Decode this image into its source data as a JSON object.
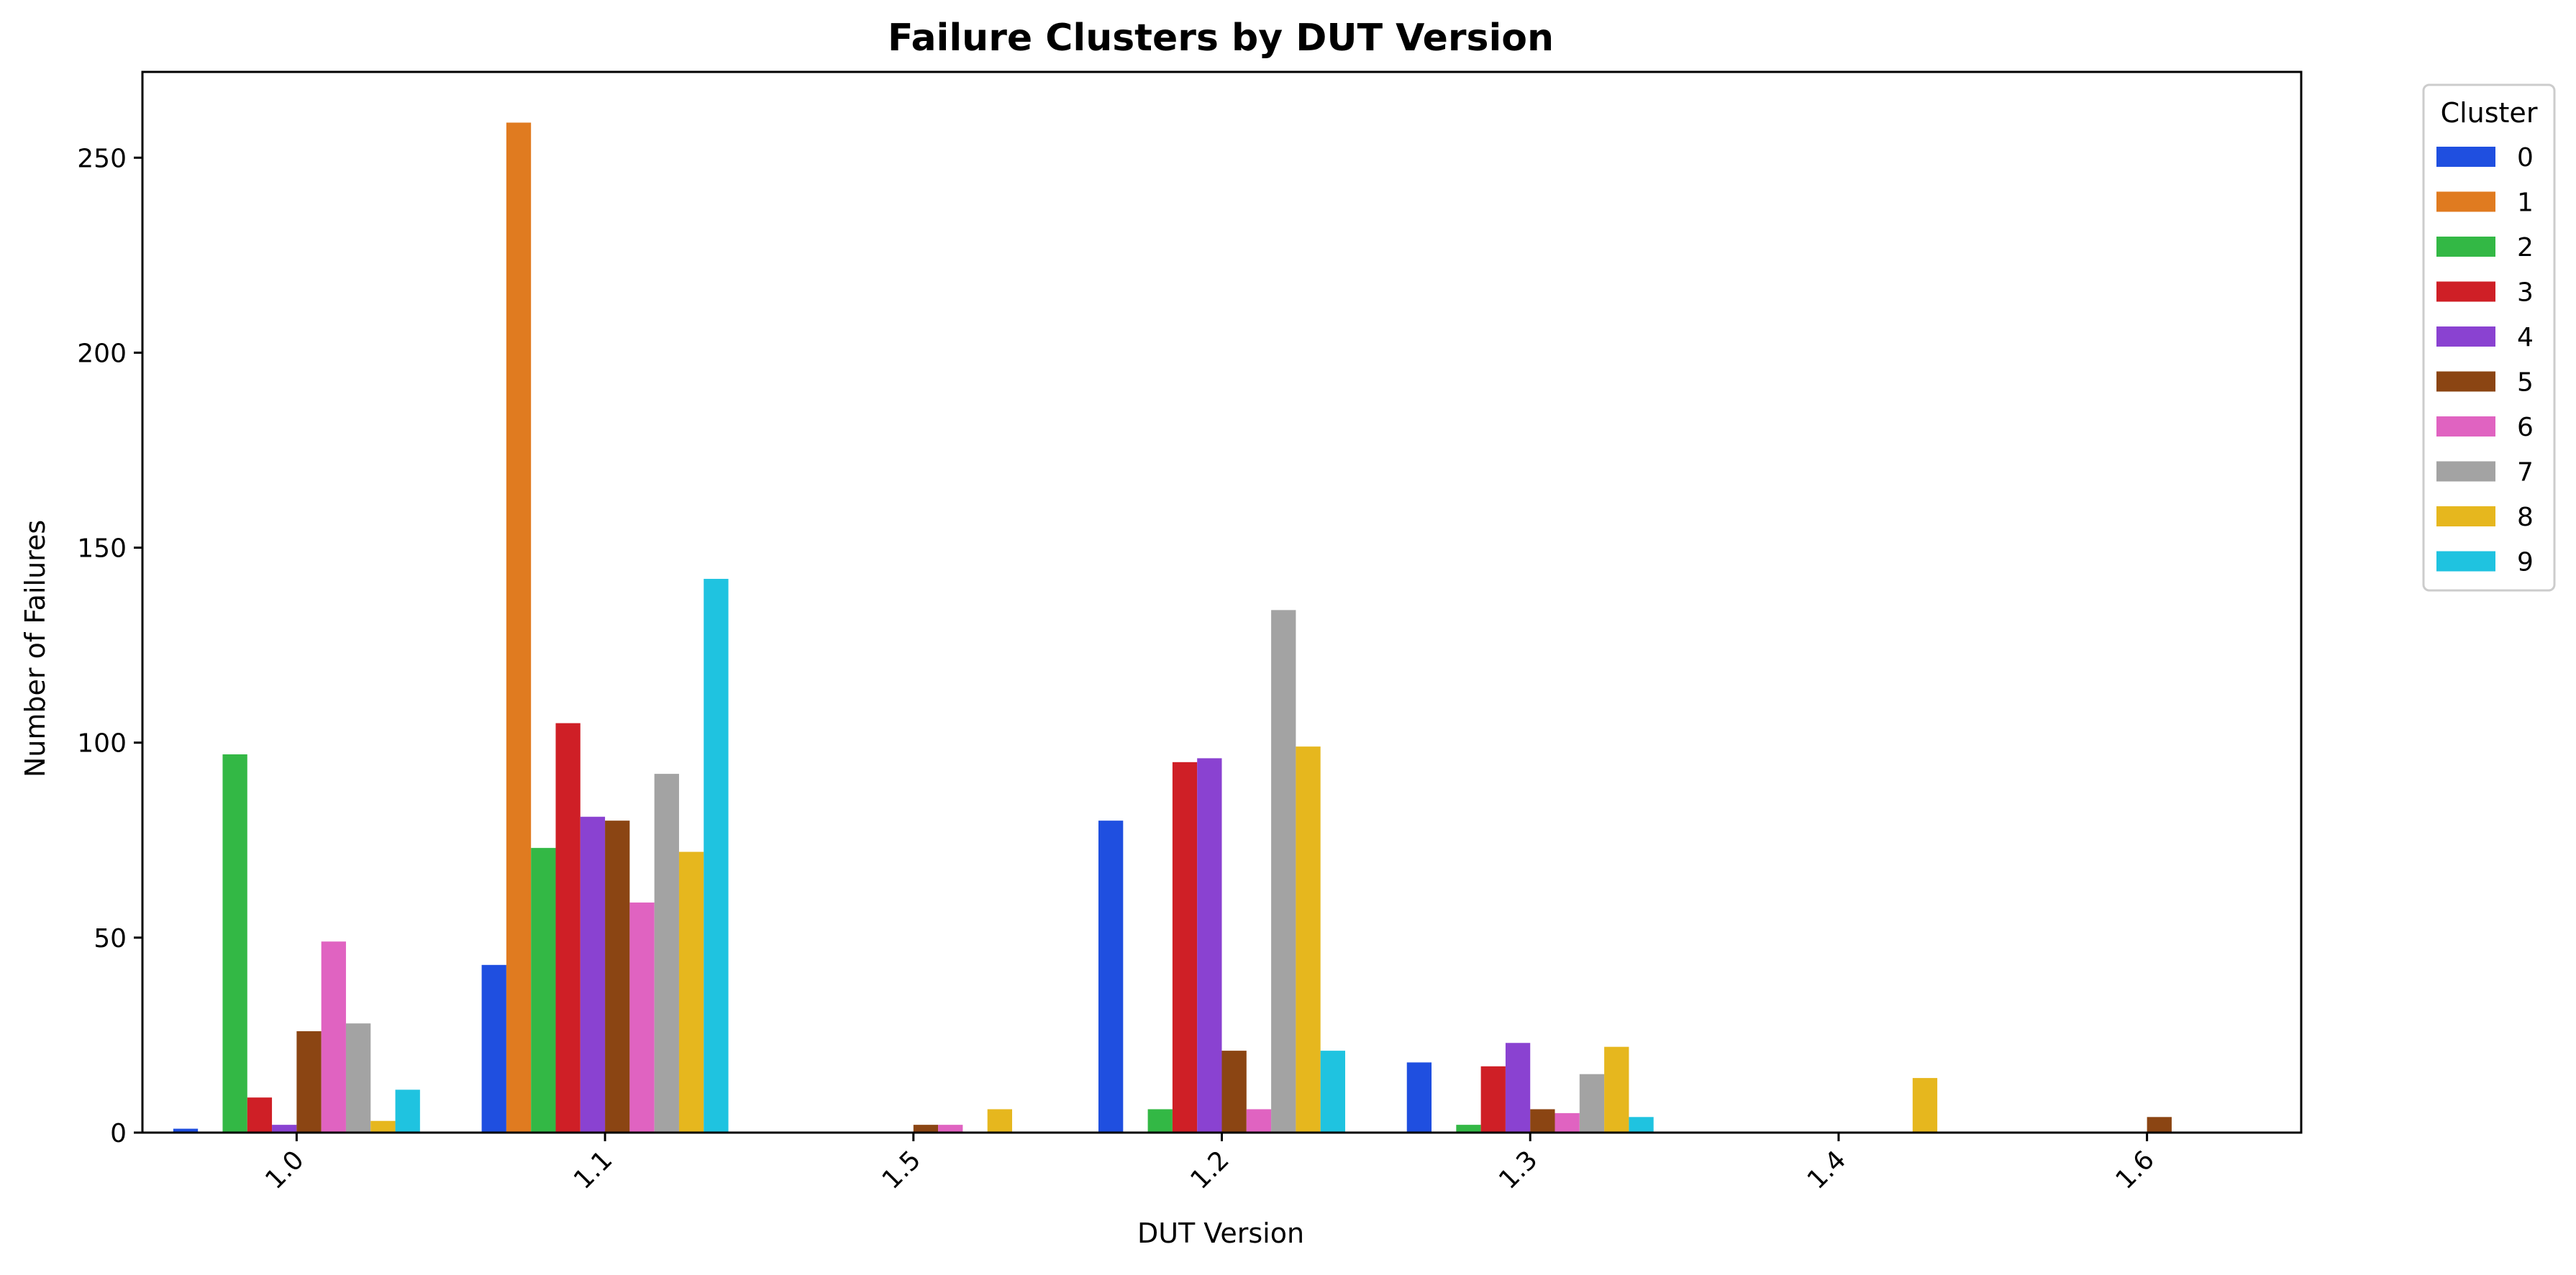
{
  "chart_data": {
    "type": "bar",
    "title": "Failure Clusters by DUT Version",
    "xlabel": "DUT Version",
    "ylabel": "Number of Failures",
    "categories": [
      "1.0",
      "1.1",
      "1.5",
      "1.2",
      "1.3",
      "1.4",
      "1.6"
    ],
    "ylim": [
      0,
      272
    ],
    "yticks": [
      0,
      50,
      100,
      150,
      200,
      250
    ],
    "grid": false,
    "legend": {
      "title": "Cluster",
      "placement": "outside-top-right"
    },
    "series": [
      {
        "name": "0",
        "color": "#1f4fe0",
        "values": [
          1,
          43,
          0,
          80,
          18,
          0,
          0
        ]
      },
      {
        "name": "1",
        "color": "#e07b20",
        "values": [
          0,
          259,
          0,
          0,
          0,
          0,
          0
        ]
      },
      {
        "name": "2",
        "color": "#33b845",
        "values": [
          97,
          73,
          0,
          6,
          2,
          0,
          0
        ]
      },
      {
        "name": "3",
        "color": "#cf1f26",
        "values": [
          9,
          105,
          0,
          95,
          17,
          0,
          0
        ]
      },
      {
        "name": "4",
        "color": "#8a42d1",
        "values": [
          2,
          81,
          0,
          96,
          23,
          0,
          0
        ]
      },
      {
        "name": "5",
        "color": "#8b4513",
        "values": [
          26,
          80,
          2,
          21,
          6,
          0,
          4
        ]
      },
      {
        "name": "6",
        "color": "#e063c1",
        "values": [
          49,
          59,
          2,
          6,
          5,
          0,
          0
        ]
      },
      {
        "name": "7",
        "color": "#a3a3a3",
        "values": [
          28,
          92,
          0,
          134,
          15,
          0,
          0
        ]
      },
      {
        "name": "8",
        "color": "#e6b71e",
        "values": [
          3,
          72,
          6,
          99,
          22,
          14,
          0
        ]
      },
      {
        "name": "9",
        "color": "#1fc3e0",
        "values": [
          11,
          142,
          0,
          21,
          4,
          0,
          0
        ]
      }
    ]
  }
}
